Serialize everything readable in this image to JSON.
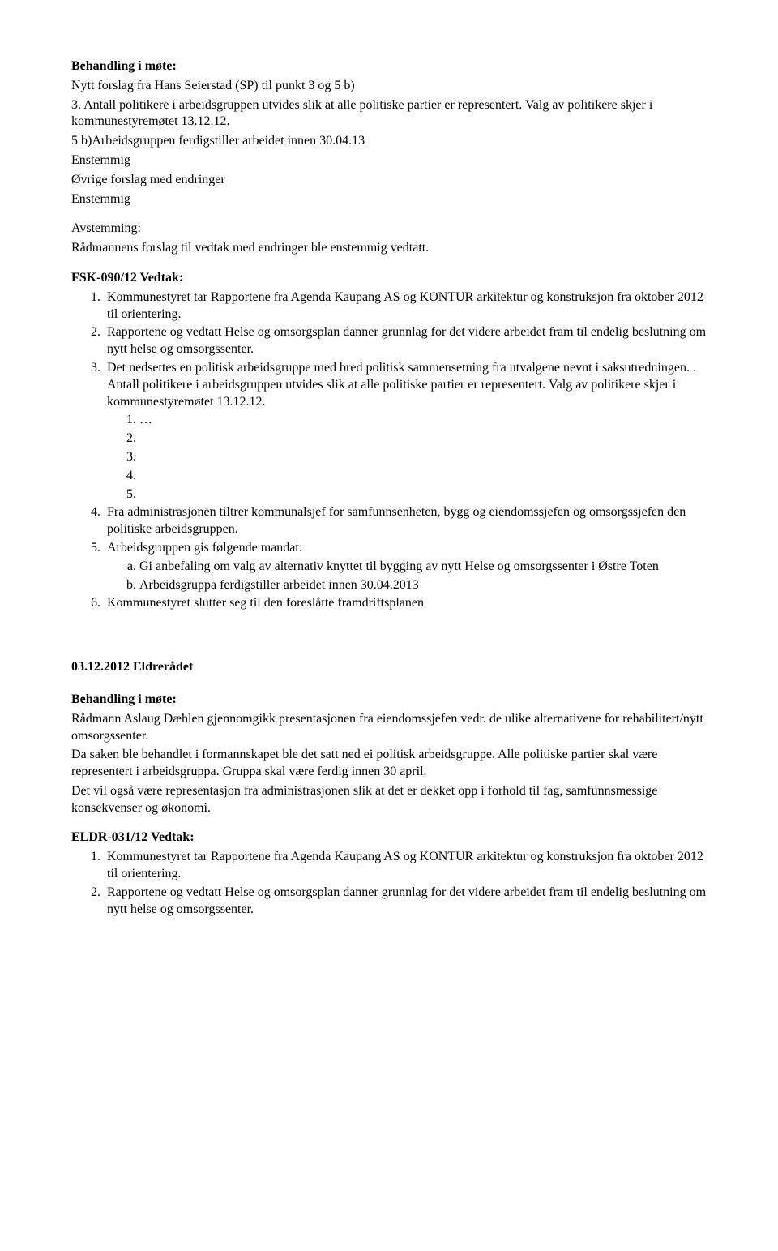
{
  "section1": {
    "heading": "Behandling i møte:",
    "line1": "Nytt forslag fra Hans Seierstad (SP) til punkt 3 og 5 b)",
    "line2": "3. Antall politikere i arbeidsgruppen utvides slik at alle politiske partier er representert. Valg av politikere skjer i kommunestyremøtet 13.12.12.",
    "line3": "5 b)Arbeidsgruppen ferdigstiller arbeidet innen 30.04.13",
    "line4": "Enstemmig",
    "line5": "Øvrige forslag med endringer",
    "line6": "Enstemmig"
  },
  "avstemming": {
    "heading": "Avstemming:",
    "body": "Rådmannens forslag til vedtak med endringer ble enstemmig vedtatt."
  },
  "fsk": {
    "heading": "FSK-090/12 Vedtak:",
    "items": [
      "Kommunestyret tar Rapportene fra Agenda Kaupang AS og KONTUR arkitektur og konstruksjon fra oktober 2012 til orientering.",
      "Rapportene og vedtatt Helse og omsorgsplan danner grunnlag for det videre arbeidet fram til endelig beslutning om nytt helse og omsorgssenter.",
      "Det nedsettes en politisk arbeidsgruppe med bred politisk sammensetning fra utvalgene nevnt i saksutredningen. . Antall politikere i arbeidsgruppen utvides slik at alle politiske partier er representert. Valg av politikere skjer i kommunestyremøtet 13.12.12.",
      "Fra administrasjonen tiltrer kommunalsjef for samfunnsenheten, bygg og eiendomssjefen og omsorgssjefen den politiske arbeidsgruppen.",
      "Arbeidsgruppen gis følgende mandat:",
      "Kommunestyret slutter seg til den foreslåtte framdriftsplanen"
    ],
    "sub3": [
      "…",
      "",
      "",
      "",
      ""
    ],
    "sub5": [
      "Gi anbefaling om valg av alternativ knyttet til bygging av nytt Helse og omsorgssenter i Østre Toten",
      "Arbeidsgruppa ferdigstiller arbeidet innen 30.04.2013"
    ]
  },
  "eldre": {
    "heading": "03.12.2012 Eldrerådet",
    "behandling_heading": "Behandling i møte:",
    "p1": "Rådmann Aslaug Dæhlen gjennomgikk presentasjonen fra eiendomssjefen vedr. de ulike alternativene for rehabilitert/nytt omsorgssenter.",
    "p2": "Da saken ble behandlet i formannskapet ble det satt ned ei politisk arbeidsgruppe. Alle politiske partier skal være representert i arbeidsgruppa.  Gruppa skal være ferdig innen 30 april.",
    "p3": "Det vil også være representasjon fra administrasjonen slik at det er dekket opp i forhold til fag, samfunnsmessige konsekvenser og økonomi.",
    "vedtak_heading": "ELDR-031/12 Vedtak:",
    "items": [
      "Kommunestyret tar Rapportene fra Agenda Kaupang AS og KONTUR arkitektur og konstruksjon fra oktober 2012 til orientering.",
      "Rapportene og vedtatt Helse og omsorgsplan danner grunnlag for det videre arbeidet fram til endelig beslutning om nytt helse og omsorgssenter."
    ]
  }
}
